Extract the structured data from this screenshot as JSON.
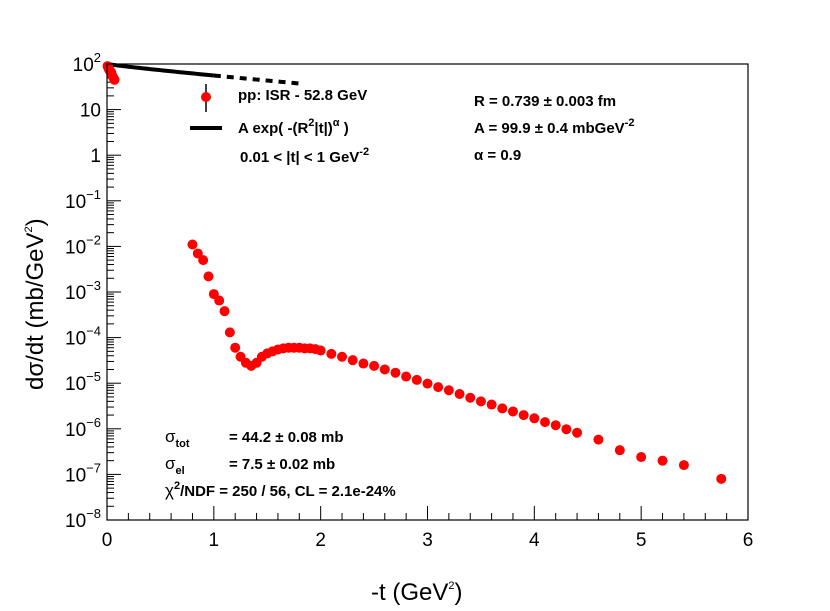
{
  "chart_data": {
    "type": "scatter",
    "xlabel": "-t (GeV",
    "xlabel_sup": "2",
    "xlabel_close": ")",
    "ylabel": "dσ/dt (mb/GeV",
    "ylabel_sup": "2",
    "ylabel_close": ")",
    "xlim": [
      0,
      6
    ],
    "ylim": [
      1e-08,
      100
    ],
    "yscale": "log",
    "x_ticks": [
      0,
      1,
      2,
      3,
      4,
      5,
      6
    ],
    "x_tick_labels": [
      "0",
      "1",
      "2",
      "3",
      "4",
      "5",
      "6"
    ],
    "y_ticks": [
      {
        "base": "10",
        "exp": "2"
      },
      {
        "base": "10",
        "exp": ""
      },
      {
        "base": "1",
        "exp": ""
      },
      {
        "base": "10",
        "exp": "−1"
      },
      {
        "base": "10",
        "exp": "−2"
      },
      {
        "base": "10",
        "exp": "−3"
      },
      {
        "base": "10",
        "exp": "−4"
      },
      {
        "base": "10",
        "exp": "−5"
      },
      {
        "base": "10",
        "exp": "−6"
      },
      {
        "base": "10",
        "exp": "−7"
      },
      {
        "base": "10",
        "exp": "−8"
      }
    ],
    "y_tick_values": [
      100,
      10,
      1,
      0.1,
      0.01,
      0.001,
      0.0001,
      1e-05,
      1e-06,
      1e-07,
      1e-08
    ],
    "series": [
      {
        "name": "pp: ISR - 52.8 GeV",
        "color": "#ff0000",
        "x": [
          0.005,
          0.01,
          0.015,
          0.02,
          0.03,
          0.04,
          0.05,
          0.06,
          0.07,
          0.8,
          0.85,
          0.9,
          0.95,
          1.0,
          1.05,
          1.1,
          1.15,
          1.2,
          1.25,
          1.3,
          1.35,
          1.4,
          1.45,
          1.5,
          1.55,
          1.6,
          1.65,
          1.7,
          1.75,
          1.8,
          1.85,
          1.9,
          1.95,
          2.0,
          2.1,
          2.2,
          2.3,
          2.4,
          2.5,
          2.6,
          2.7,
          2.8,
          2.9,
          3.0,
          3.1,
          3.2,
          3.3,
          3.4,
          3.5,
          3.6,
          3.7,
          3.8,
          3.9,
          4.0,
          4.1,
          4.2,
          4.3,
          4.4,
          4.6,
          4.8,
          5.0,
          5.2,
          5.4,
          5.75
        ],
        "y": [
          90,
          85,
          80,
          75,
          70,
          65,
          55,
          50,
          45,
          0.011,
          0.007,
          0.005,
          0.0022,
          0.0009,
          0.00065,
          0.00038,
          0.00013,
          6e-05,
          3.8e-05,
          2.8e-05,
          2.4e-05,
          2.8e-05,
          3.8e-05,
          4.5e-05,
          5e-05,
          5.5e-05,
          5.8e-05,
          6e-05,
          6e-05,
          6e-05,
          5.8e-05,
          5.8e-05,
          5.6e-05,
          5.2e-05,
          4.4e-05,
          3.8e-05,
          3.2e-05,
          2.7e-05,
          2.4e-05,
          2e-05,
          1.7e-05,
          1.4e-05,
          1.18e-05,
          9.8e-06,
          8.2e-06,
          7e-06,
          5.8e-06,
          4.8e-06,
          4e-06,
          3.4e-06,
          2.8e-06,
          2.4e-06,
          2e-06,
          1.7e-06,
          1.4e-06,
          1.2e-06,
          9.8e-07,
          8.2e-07,
          5.8e-07,
          3.4e-07,
          2.4e-07,
          2e-07,
          1.6e-07,
          8e-08
        ]
      }
    ],
    "fit": {
      "label": "A exp( -(R",
      "label_sup": "2",
      "label_mid": "|t|)",
      "label_sup2": "α",
      "label_close": " )",
      "A": 99.9,
      "R": 0.739,
      "alpha": 0.9,
      "solid_range": [
        0,
        1
      ],
      "dashed_range": [
        1,
        1.8
      ],
      "color": "#000000"
    },
    "legend": {
      "marker_label": "pp: ISR - 52.8 GeV",
      "range_label": "0.01 < |t| < 1  GeV",
      "range_sup": "-2"
    },
    "fit_params": {
      "R": "R = 0.739 ",
      "R_err": "± 0.003 fm",
      "A": "A = 99.9 ",
      "A_err": "± 0.4 mbGeV",
      "A_sup": "-2",
      "alpha": "α  = 0.9"
    },
    "stats": {
      "sigma_tot_sym": "σ",
      "sigma_tot_sub": "tot",
      "sigma_tot_val": "= 44.2 ",
      "sigma_tot_err": "± 0.08 mb",
      "sigma_el_sym": "σ",
      "sigma_el_sub": "el",
      "sigma_el_val": "= 7.5 ",
      "sigma_el_err": "± 0.02 mb",
      "chi2_sym": "χ",
      "chi2_sup": "2",
      "chi2_text": "/NDF = 250 / 56,  CL = 2.1e-24%"
    }
  }
}
